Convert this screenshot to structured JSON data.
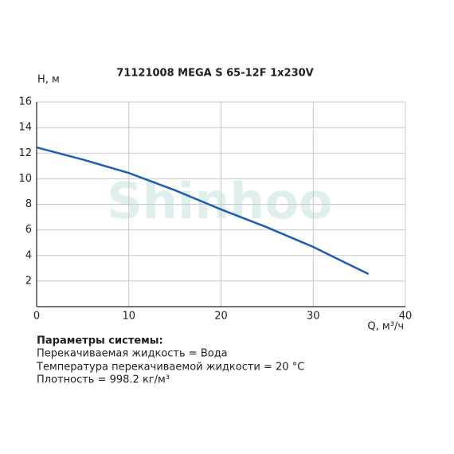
{
  "chart_data": {
    "type": "line",
    "title": "71121008 MEGA S 65-12F 1x230V",
    "watermark": "Shinhoo",
    "y_label": "H, м",
    "x_label": "Q, м³/ч",
    "x": [
      0,
      5,
      10,
      15,
      20,
      25,
      30,
      33,
      36
    ],
    "series": [
      {
        "name": "H",
        "color": "#1f5cb4",
        "values": [
          12.45,
          11.5,
          10.45,
          9.1,
          7.6,
          6.2,
          4.67,
          3.6,
          2.55
        ]
      }
    ],
    "xlim": [
      0,
      40
    ],
    "ylim": [
      0,
      16
    ],
    "xticks": [
      0,
      10,
      20,
      30,
      40
    ],
    "yticks": [
      2,
      4,
      6,
      8,
      10,
      12,
      14,
      16
    ],
    "grid": true
  },
  "info": {
    "heading": "Параметры системы:",
    "lines": [
      "Перекачиваемая жидкость = Вода",
      "Температура перекачиваемой жидкости = 20 °C",
      "Плотность = 998.2 кг/м³"
    ]
  }
}
